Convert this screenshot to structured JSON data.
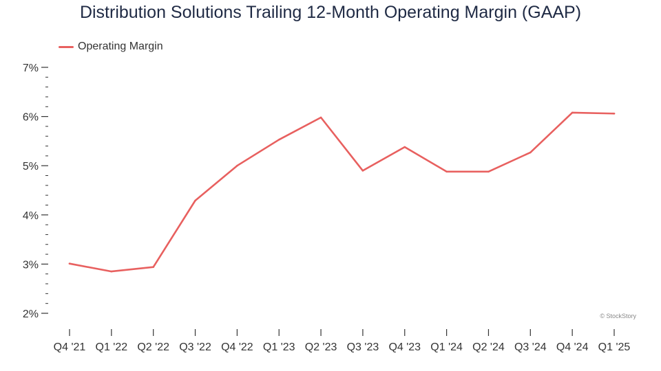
{
  "chart_data": {
    "type": "line",
    "title": "Distribution Solutions Trailing 12-Month Operating Margin (GAAP)",
    "xlabel": "",
    "ylabel": "",
    "categories": [
      "Q4 '21",
      "Q1 '22",
      "Q2 '22",
      "Q3 '22",
      "Q4 '22",
      "Q1 '23",
      "Q2 '23",
      "Q3 '23",
      "Q4 '23",
      "Q1 '24",
      "Q2 '24",
      "Q3 '24",
      "Q4 '24",
      "Q1 '25"
    ],
    "series": [
      {
        "name": "Operating Margin",
        "color": "#e8605f",
        "values": [
          3.01,
          2.85,
          2.94,
          4.29,
          5.0,
          5.53,
          5.98,
          4.9,
          5.38,
          4.88,
          4.88,
          5.27,
          6.08,
          6.06
        ]
      }
    ],
    "ylim": [
      2,
      7
    ],
    "yticks": [
      2,
      3,
      4,
      5,
      6,
      7
    ],
    "ytick_labels": [
      "2%",
      "3%",
      "4%",
      "5%",
      "6%",
      "7%"
    ],
    "legend_position": "top-left",
    "grid": false
  },
  "watermark": "© StockStory"
}
